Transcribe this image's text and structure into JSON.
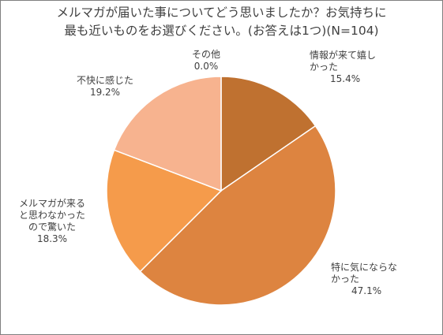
{
  "chart_data": {
    "type": "pie",
    "title_lines": [
      "メルマガが届いた事についてどう思いましたか？お気持ちに",
      "最も近いものをお選びください。(お答えは1つ)(N=104)"
    ],
    "slices": [
      {
        "label_lines": [
          "情報が来て嬉し",
          "かった"
        ],
        "value": 15.4,
        "percent_label": "15.4%",
        "color": "#bf7130"
      },
      {
        "label_lines": [
          "特に気にならな",
          "かった"
        ],
        "value": 47.1,
        "percent_label": "47.1%",
        "color": "#dd8440"
      },
      {
        "label_lines": [
          "メルマガが来る",
          "と思わなかった",
          "ので驚いた"
        ],
        "value": 18.3,
        "percent_label": "18.3%",
        "color": "#f59b4b"
      },
      {
        "label_lines": [
          "不快に感じた"
        ],
        "value": 19.2,
        "percent_label": "19.2%",
        "color": "#f7b38f"
      },
      {
        "label_lines": [
          "その他"
        ],
        "value": 0.0,
        "percent_label": "0.0%",
        "color": "#fbd3b8"
      }
    ]
  }
}
